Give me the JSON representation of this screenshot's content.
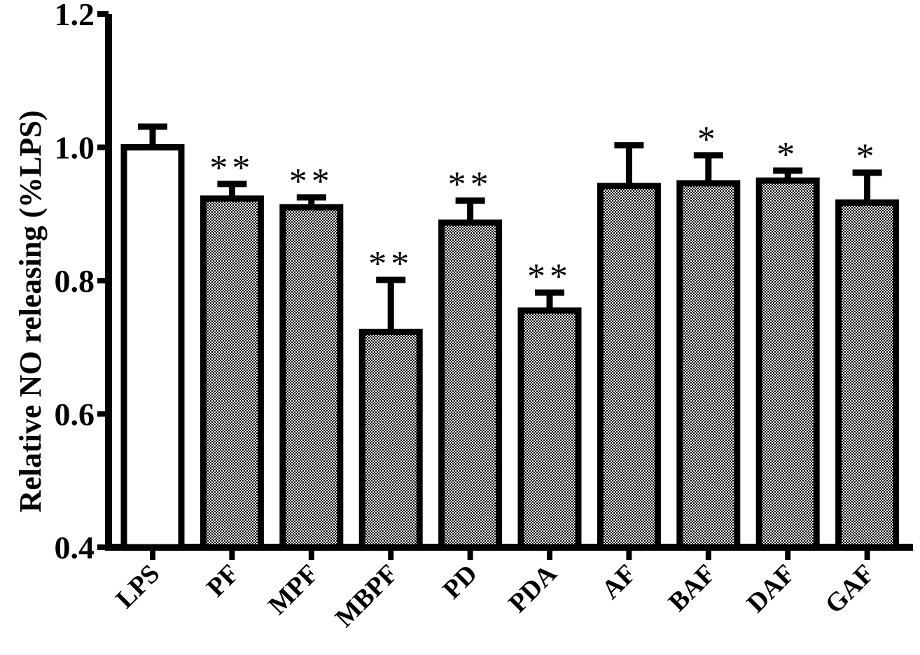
{
  "chart_data": {
    "type": "bar",
    "title": "",
    "xlabel": "",
    "ylabel": "Relative NO releasing (%LPS)",
    "ylim": [
      0.4,
      1.2
    ],
    "yticks": [
      "0.4",
      "0.6",
      "0.8",
      "1.0",
      "1.2"
    ],
    "grid": false,
    "legend": "none",
    "categories": [
      "LPS",
      "PF",
      "MPF",
      "MBPF",
      "PD",
      "PDA",
      "AF",
      "BAF",
      "DAF",
      "GAF"
    ],
    "values": [
      1.0,
      0.923,
      0.91,
      0.723,
      0.887,
      0.755,
      0.942,
      0.946,
      0.95,
      0.917
    ],
    "errors": [
      0.031,
      0.022,
      0.015,
      0.078,
      0.033,
      0.027,
      0.061,
      0.042,
      0.015,
      0.045
    ],
    "significance": [
      "",
      "**",
      "**",
      "**",
      "**",
      "**",
      "",
      "*",
      "*",
      "*"
    ],
    "fill_patterns": [
      "white",
      "checker",
      "checker",
      "checker",
      "checker",
      "checker",
      "checker",
      "checker",
      "checker",
      "checker"
    ],
    "colors": {
      "stroke": "#000000",
      "bar_white": "#ffffff",
      "checker_dark": "#000000",
      "checker_light": "#ffffff"
    }
  }
}
